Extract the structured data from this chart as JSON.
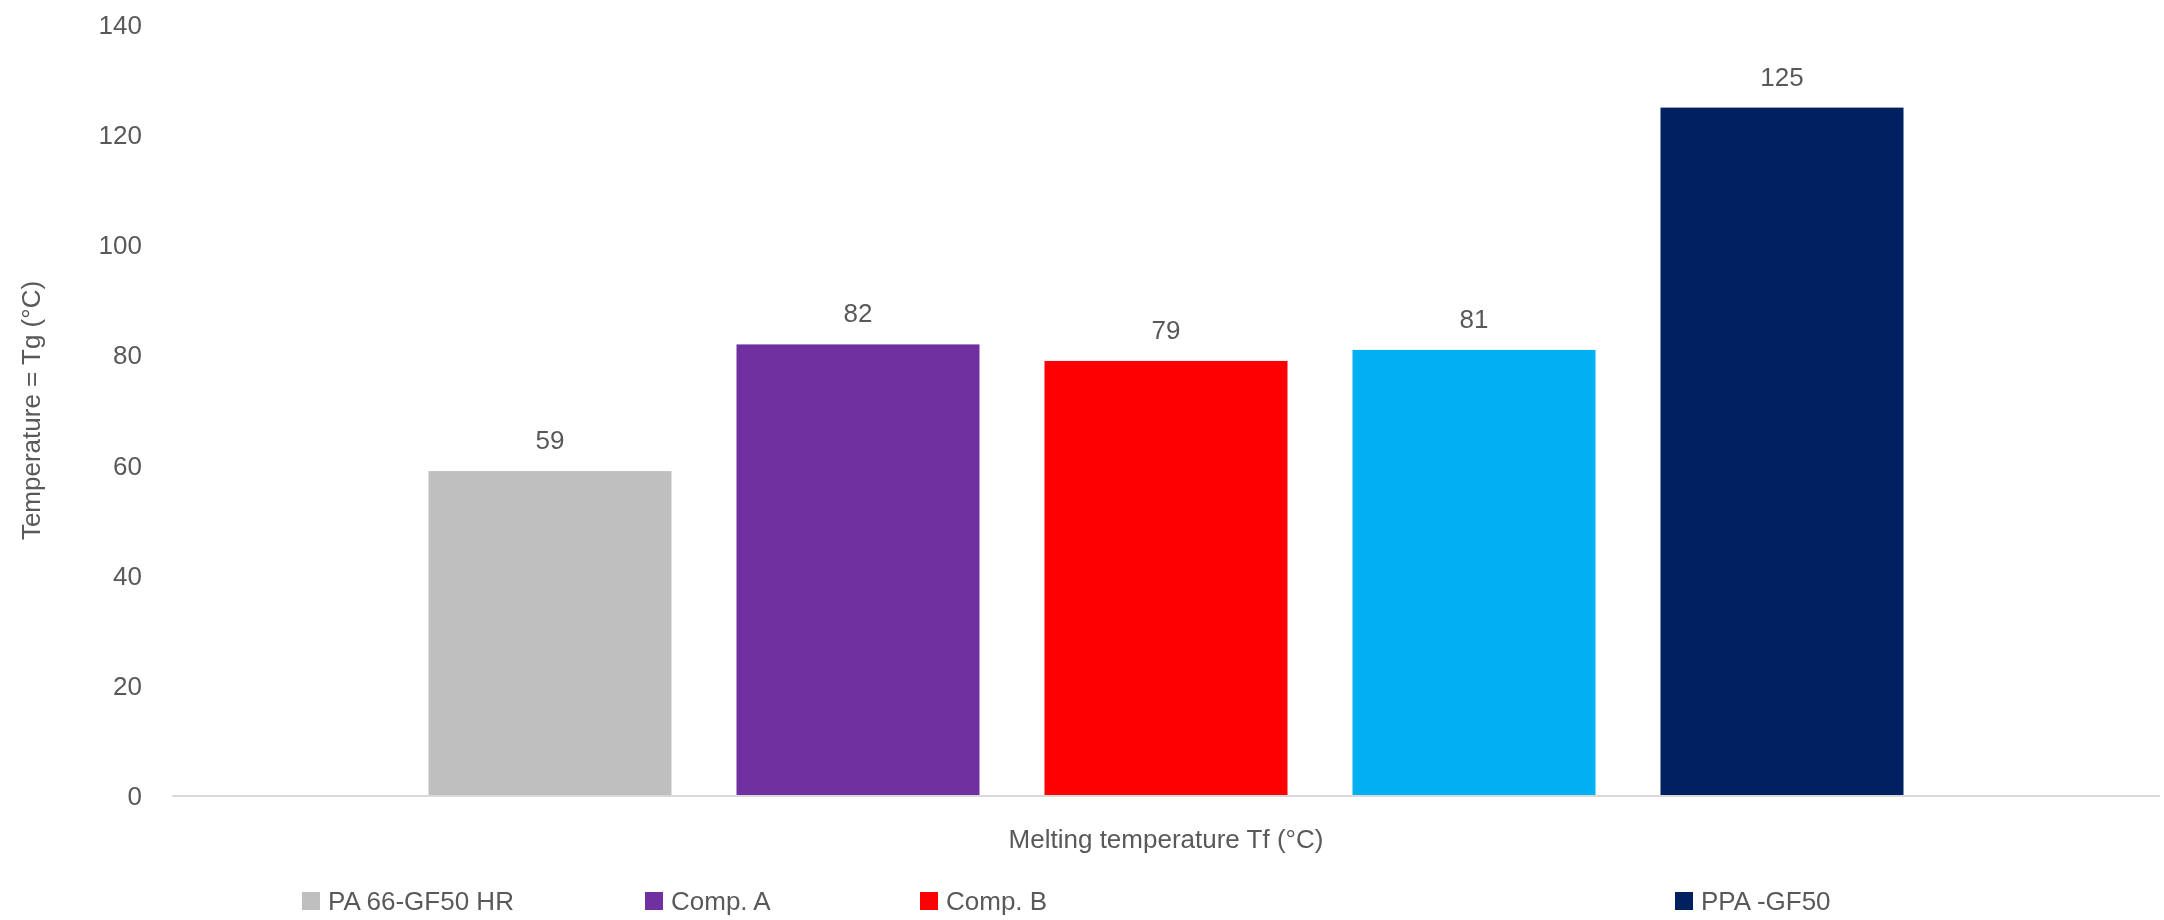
{
  "chart_data": {
    "type": "bar",
    "xlabel": "Melting  temperature Tf (°C)",
    "ylabel": "Temperature = Tg (°C)",
    "categories": [
      null
    ],
    "series": [
      {
        "name": "PA 66-GF50 HR",
        "color": "#bfbfbf",
        "values": [
          59
        ]
      },
      {
        "name": "Comp. A",
        "color": "#7030a0",
        "values": [
          82
        ]
      },
      {
        "name": "Comp. B",
        "color": "#ff0000",
        "values": [
          79
        ]
      },
      {
        "color": "#00b0f0",
        "values": [
          81
        ]
      },
      {
        "name": "PPA -GF50",
        "color": "#002060",
        "values": [
          125
        ]
      }
    ],
    "ylim": [
      0,
      140
    ],
    "yticks": [
      0,
      20,
      40,
      60,
      80,
      100,
      120,
      140
    ],
    "data_labels": true,
    "legend": "bottom",
    "grid": false
  }
}
